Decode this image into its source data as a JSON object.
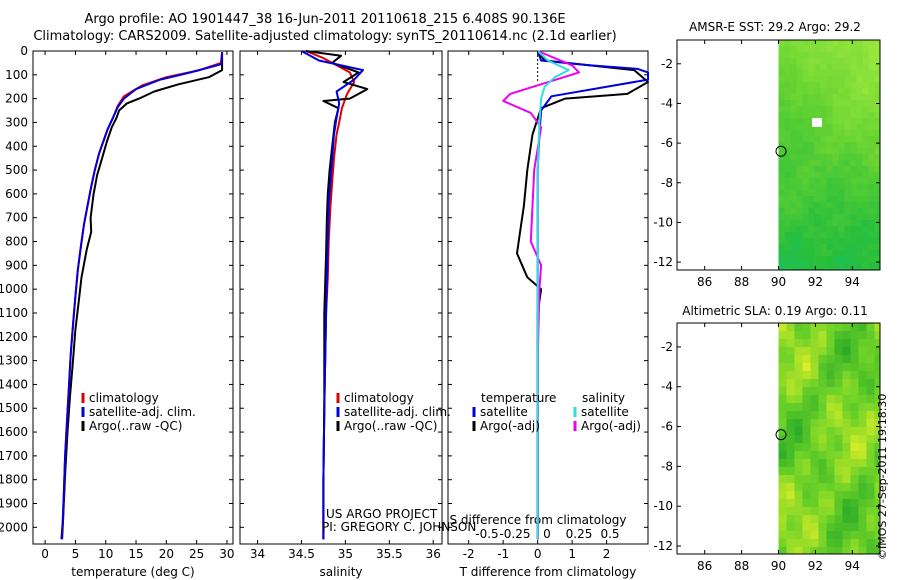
{
  "titles": {
    "line1": "Argo profile: AO 1901447_38 16-Jun-2011 20110618_215 6.408S 90.136E",
    "line2": "Climatology: CARS2009. Satellite-adjusted climatology: synTS_20110614.nc (2.1d earlier)",
    "sst_title": "AMSR-E SST: 29.2 Argo: 29.2",
    "sla_title": "Altimetric SLA: 0.19 Argo: 0.11"
  },
  "annotations": {
    "project": "US ARGO PROJECT",
    "pi": "PI: GREGORY C. JOHNSON",
    "watermark": "©IMOS 27-Sep-2011 19:18:30"
  },
  "colors": {
    "climatology": "#dd0000",
    "satellite": "#0000dd",
    "argo": "#000000",
    "salinity_sat": "#33dddd",
    "salinity_argo": "#ee00ee"
  },
  "chart_data": [
    {
      "type": "line",
      "name": "temperature",
      "xlabel": "temperature (deg C)",
      "ylabel": "",
      "xlim": [
        -2,
        31
      ],
      "ylim": [
        2070,
        0
      ],
      "xticks": [
        0,
        5,
        10,
        15,
        20,
        25,
        30
      ],
      "yticks": [
        0,
        100,
        200,
        300,
        400,
        500,
        600,
        700,
        800,
        900,
        1000,
        1100,
        1200,
        1300,
        1400,
        1500,
        1600,
        1700,
        1800,
        1900,
        2000
      ],
      "legend": [
        "climatology",
        "satellite-adj. clim.",
        "Argo(..raw -QC)"
      ],
      "series": [
        {
          "name": "climatology",
          "x": [
            29.2,
            29.0,
            25.5,
            20.0,
            16.0,
            13.0,
            12.0,
            11.2,
            10.3,
            9.6,
            8.9,
            8.2,
            7.6,
            7.0,
            6.4,
            5.9,
            5.4,
            5.0,
            4.6,
            4.2,
            3.9,
            3.6,
            3.3,
            3.1,
            2.9,
            2.7
          ],
          "y": [
            5,
            50,
            80,
            110,
            145,
            190,
            230,
            280,
            330,
            380,
            430,
            500,
            570,
            650,
            730,
            820,
            920,
            1030,
            1150,
            1280,
            1420,
            1560,
            1700,
            1850,
            1980,
            2050
          ]
        },
        {
          "name": "satellite-adj. clim.",
          "x": [
            29.2,
            29.1,
            24.0,
            19.0,
            15.0,
            13.0,
            12.0,
            11.2,
            10.3,
            9.6,
            8.9,
            8.2,
            7.6,
            7.0,
            6.4,
            5.9,
            5.4,
            5.0,
            4.6,
            4.2,
            3.9,
            3.6,
            3.3,
            3.1,
            2.9,
            2.7
          ],
          "y": [
            5,
            55,
            90,
            120,
            160,
            200,
            235,
            280,
            330,
            380,
            430,
            500,
            570,
            650,
            730,
            820,
            920,
            1030,
            1150,
            1280,
            1420,
            1560,
            1700,
            1850,
            1980,
            2050
          ]
        },
        {
          "name": "Argo(..raw -QC)",
          "x": [
            29.2,
            29.2,
            27.0,
            22.0,
            18.0,
            15.5,
            13.5,
            12.2,
            11.8,
            11.0,
            10.2,
            9.4,
            8.6,
            8.0,
            7.5,
            7.6,
            6.9,
            6.0,
            5.5,
            5.0,
            4.6,
            4.1,
            3.7,
            3.3,
            3.0,
            2.8
          ],
          "y": [
            5,
            80,
            110,
            140,
            170,
            200,
            220,
            250,
            280,
            320,
            380,
            450,
            520,
            600,
            700,
            760,
            830,
            950,
            1060,
            1170,
            1300,
            1450,
            1600,
            1780,
            1950,
            2050
          ]
        }
      ]
    },
    {
      "type": "line",
      "name": "salinity",
      "xlabel": "salinity",
      "ylabel": "",
      "xlim": [
        33.8,
        36.1
      ],
      "ylim": [
        2070,
        0
      ],
      "xticks": [
        34,
        34.5,
        35,
        35.5,
        36
      ],
      "legend": [
        "climatology",
        "satellite-adj. clim.",
        "Argo(..raw -QC)"
      ],
      "series": [
        {
          "name": "climatology",
          "x": [
            34.55,
            34.75,
            34.9,
            35.05,
            35.1,
            35.02,
            34.96,
            34.93,
            34.9,
            34.87,
            34.85,
            34.83,
            34.81,
            34.8,
            34.78,
            34.77,
            34.76,
            34.75,
            34.75
          ],
          "y": [
            0,
            30,
            60,
            90,
            130,
            180,
            240,
            300,
            350,
            450,
            550,
            650,
            800,
            950,
            1100,
            1300,
            1500,
            1800,
            2050
          ]
        },
        {
          "name": "satellite-adj. clim.",
          "x": [
            34.5,
            34.7,
            35.2,
            35.1,
            34.9,
            34.93,
            34.9,
            34.87,
            34.85,
            34.83,
            34.81,
            34.8,
            34.79,
            34.78,
            34.77,
            34.76,
            34.75,
            34.75
          ],
          "y": [
            0,
            40,
            80,
            120,
            170,
            220,
            280,
            350,
            450,
            550,
            650,
            800,
            950,
            1100,
            1300,
            1500,
            1800,
            2050
          ]
        },
        {
          "name": "Argo(..raw -QC)",
          "x": [
            34.55,
            34.95,
            34.85,
            35.15,
            34.98,
            35.25,
            35.05,
            34.75,
            34.92,
            34.88,
            34.85,
            34.82,
            34.8,
            34.79,
            34.78,
            34.76,
            34.76,
            34.75,
            34.75
          ],
          "y": [
            0,
            20,
            50,
            90,
            130,
            160,
            200,
            210,
            240,
            300,
            400,
            500,
            600,
            700,
            850,
            1100,
            1500,
            1800,
            2050
          ]
        }
      ]
    },
    {
      "type": "line",
      "name": "difference",
      "xlabel": "T difference from climatology",
      "top_label": "S difference from climatology",
      "ylabel": "",
      "xlim": [
        -2.6,
        3.2
      ],
      "ylim": [
        2070,
        0
      ],
      "xticks": [
        -2,
        -1,
        0,
        1,
        2
      ],
      "top_xticks": [
        "-0.5",
        "-0.25",
        "0",
        "0.25",
        "0.5"
      ],
      "legend_temperature": {
        "header": "temperature",
        "items": [
          "satellite",
          "Argo(-adj)"
        ]
      },
      "legend_salinity": {
        "header": "salinity",
        "items": [
          "satellite",
          "Argo(-adj)"
        ]
      },
      "series": [
        {
          "name": "temperature satellite",
          "x": [
            0,
            0.1,
            1.5,
            2.9,
            3.2,
            3.2,
            0.4,
            0.1,
            0.05,
            0,
            0,
            0,
            0,
            0
          ],
          "y": [
            0,
            40,
            60,
            75,
            90,
            120,
            190,
            250,
            350,
            500,
            800,
            1200,
            1600,
            2050
          ]
        },
        {
          "name": "temperature Argo(-adj)",
          "x": [
            0,
            0.2,
            2.8,
            3.2,
            2.6,
            0.8,
            0.1,
            -0.15,
            -0.3,
            -0.4,
            -0.5,
            -0.6,
            -0.3,
            0.1,
            0,
            0,
            0,
            0
          ],
          "y": [
            0,
            40,
            80,
            130,
            180,
            200,
            240,
            350,
            500,
            650,
            750,
            850,
            950,
            1000,
            1100,
            1400,
            1700,
            2050
          ]
        },
        {
          "name": "salinity satellite",
          "x": [
            0,
            0.3,
            0.9,
            0.5,
            0.2,
            0.1,
            0.05,
            0,
            0,
            0,
            0
          ],
          "y": [
            0,
            40,
            80,
            110,
            150,
            200,
            300,
            500,
            1000,
            1500,
            2050
          ]
        },
        {
          "name": "salinity Argo(-adj)",
          "x": [
            0,
            1.0,
            1.2,
            -0.8,
            -1.0,
            -0.2,
            0.1,
            -0.1,
            -0.2,
            0.1,
            0.05,
            0,
            0,
            0
          ],
          "y": [
            0,
            60,
            90,
            180,
            210,
            260,
            320,
            500,
            800,
            900,
            1000,
            1300,
            1700,
            2050
          ]
        }
      ]
    },
    {
      "type": "heatmap",
      "name": "sst map",
      "title": "AMSR-E SST: 29.2 Argo: 29.2",
      "xlim": [
        84.5,
        95.5
      ],
      "ylim": [
        -12.4,
        -0.8
      ],
      "xticks": [
        86,
        88,
        90,
        92,
        94
      ],
      "yticks": [
        -2,
        -4,
        -6,
        -8,
        -10,
        -12
      ],
      "data_start_lon": 90,
      "marker": {
        "lon": 90.136,
        "lat": -6.408
      }
    },
    {
      "type": "heatmap",
      "name": "sla map",
      "title": "Altimetric SLA: 0.19 Argo: 0.11",
      "xlim": [
        84.5,
        95.5
      ],
      "ylim": [
        -12.4,
        -0.8
      ],
      "xticks": [
        86,
        88,
        90,
        92,
        94
      ],
      "yticks": [
        -2,
        -4,
        -6,
        -8,
        -10,
        -12
      ],
      "data_start_lon": 90,
      "marker": {
        "lon": 90.136,
        "lat": -6.408
      }
    }
  ]
}
